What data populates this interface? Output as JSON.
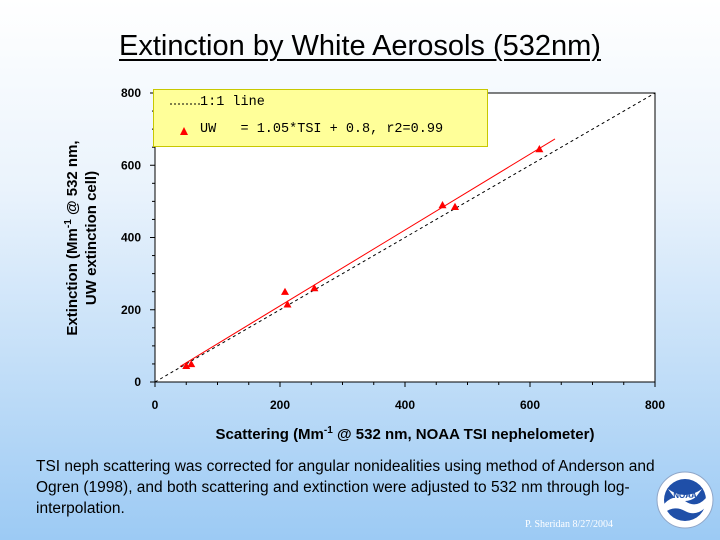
{
  "chart_data": {
    "type": "scatter",
    "title": "Extinction by White Aerosols (532nm)",
    "xlabel": {
      "pre": "Scattering (Mm",
      "sup": "-1",
      "post": " @ 532 nm, NOAA TSI nephelometer)"
    },
    "ylabel": {
      "pre": "Extinction (Mm",
      "sup": "-1",
      "post": " @ 532 nm,",
      "line2": "UW extinction cell)"
    },
    "xlim": [
      0,
      800
    ],
    "ylim": [
      0,
      800
    ],
    "x_ticks": [
      "0",
      "200",
      "400",
      "600",
      "800"
    ],
    "y_ticks": [
      "0",
      "200",
      "400",
      "600",
      "800"
    ],
    "grid": false,
    "legend_position": "top-left",
    "series": [
      {
        "name": "UW   = 1.05*TSI + 0.8, r2=0.99",
        "marker": "triangle",
        "color": "#ff0000",
        "points": [
          {
            "x": 50,
            "y": 45
          },
          {
            "x": 58,
            "y": 50
          },
          {
            "x": 208,
            "y": 250
          },
          {
            "x": 212,
            "y": 215
          },
          {
            "x": 255,
            "y": 260
          },
          {
            "x": 460,
            "y": 490
          },
          {
            "x": 480,
            "y": 485
          },
          {
            "x": 615,
            "y": 645
          }
        ],
        "fit": {
          "slope": 1.05,
          "intercept": 0.8,
          "x_range": [
            40,
            640
          ]
        }
      },
      {
        "name": "1:1 line",
        "style": "dashed",
        "color": "#000000",
        "slope": 1,
        "intercept": 0,
        "x_range": [
          0,
          800
        ]
      }
    ]
  },
  "caption": "TSI neph scattering was corrected for angular nonidealities using method of Anderson and Ogren (1998), and both scattering and extinction were adjusted to 532 nm through log-interpolation.",
  "credit": "P. Sheridan  8/27/2004",
  "logo_text": "NOAA",
  "colors": {
    "background_top": "#ffffff",
    "background_bottom": "#9ccaf4",
    "legend_bg": "#ffff99",
    "series": "#ff0000"
  }
}
